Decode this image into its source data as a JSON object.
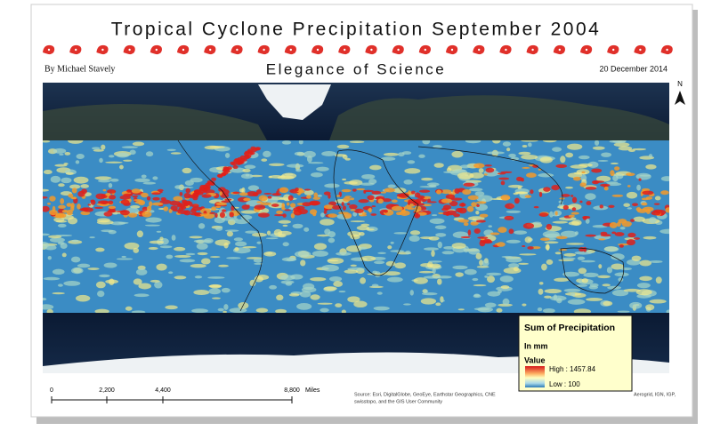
{
  "header": {
    "title": "Tropical Cyclone Precipitation September 2004",
    "subtitle": "Elegance of Science",
    "author": "By Michael Stavely",
    "date": "20 December 2014"
  },
  "north_arrow": "N",
  "legend": {
    "title": "Sum of Precipitation",
    "unit": "In mm",
    "field": "Value",
    "high": "High : 1457.84",
    "low": "Low : 100"
  },
  "scale_bar": {
    "ticks": [
      "0",
      "2,200",
      "4,400",
      "8,800"
    ],
    "unit": "Miles"
  },
  "source": {
    "line1": "Source: Esri, DigitalGlobe, GeoEye, Earthstar Geographics, CNE",
    "line1_end": "Aerogrid, IGN, IGP,",
    "line2": "swisstopo, and the GIS User Community"
  }
}
